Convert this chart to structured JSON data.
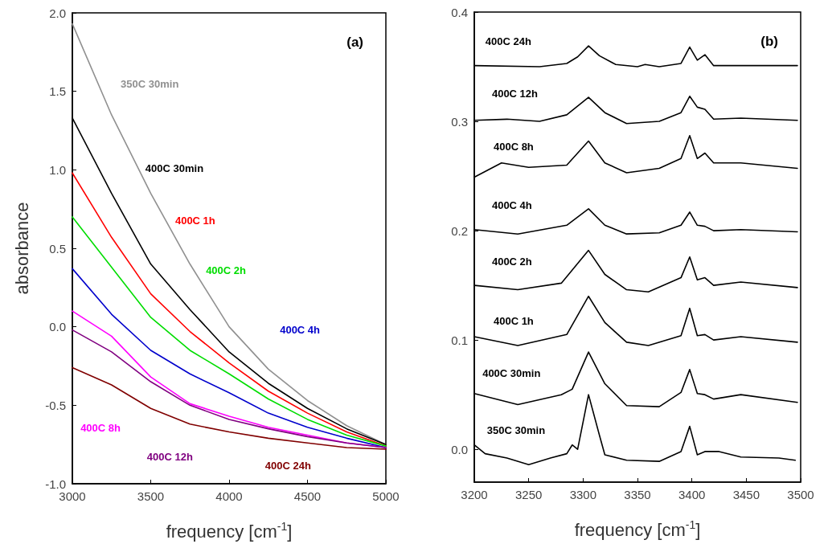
{
  "chart_data": [
    {
      "type": "line",
      "xlabel": "frequency [cm$^{-1}$]",
      "ylabel": "absorbance",
      "xlim": [
        3000,
        5000
      ],
      "xticks": [
        3000,
        3500,
        4000,
        4500,
        5000
      ],
      "ylim": [
        -1,
        2
      ],
      "yticks": [
        {
          "value": -1,
          "label": "-1.0"
        },
        {
          "value": -0.5,
          "label": "-0.5"
        },
        {
          "value": 0,
          "label": "0.0"
        },
        {
          "value": 0.5,
          "label": "0.5"
        },
        {
          "value": 1,
          "label": "1.0"
        },
        {
          "value": 1.5,
          "label": "1.5"
        },
        {
          "value": 2,
          "label": "2.0"
        }
      ],
      "grid": false,
      "marker": "none",
      "x": [
        3000,
        3250,
        3500,
        3750,
        4000,
        4250,
        4500,
        4750,
        5000
      ],
      "series": [
        {
          "name": "350C 30min",
          "color": "#909090",
          "values": [
            1.93,
            1.35,
            0.85,
            0.4,
            0.0,
            -0.27,
            -0.47,
            -0.63,
            -0.75
          ]
        },
        {
          "name": "400C 30min",
          "color": "#000000",
          "values": [
            1.33,
            0.85,
            0.4,
            0.11,
            -0.16,
            -0.36,
            -0.52,
            -0.65,
            -0.75
          ]
        },
        {
          "name": "400C 1h",
          "color": "#ff0000",
          "values": [
            0.98,
            0.57,
            0.21,
            -0.03,
            -0.23,
            -0.41,
            -0.55,
            -0.67,
            -0.76
          ]
        },
        {
          "name": "400C 2h",
          "color": "#00dd00",
          "values": [
            0.7,
            0.38,
            0.06,
            -0.15,
            -0.3,
            -0.46,
            -0.59,
            -0.69,
            -0.76
          ]
        },
        {
          "name": "400C 4h",
          "color": "#0000cc",
          "values": [
            0.37,
            0.08,
            -0.15,
            -0.3,
            -0.42,
            -0.55,
            -0.64,
            -0.71,
            -0.77
          ]
        },
        {
          "name": "400C 8h",
          "color": "#ff00ff",
          "values": [
            0.1,
            -0.06,
            -0.32,
            -0.49,
            -0.57,
            -0.64,
            -0.69,
            -0.74,
            -0.77
          ]
        },
        {
          "name": "400C 12h",
          "color": "#800080",
          "values": [
            -0.02,
            -0.16,
            -0.35,
            -0.5,
            -0.59,
            -0.65,
            -0.7,
            -0.74,
            -0.77
          ]
        },
        {
          "name": "400C 24h",
          "color": "#800000",
          "values": [
            -0.26,
            -0.37,
            -0.52,
            -0.62,
            -0.67,
            -0.71,
            -0.74,
            -0.77,
            -0.78
          ]
        }
      ],
      "annotations": [
        "(a)"
      ]
    },
    {
      "type": "line",
      "xlabel": "frequency [cm$^{-1}$]",
      "xlim": [
        3200,
        3500
      ],
      "xticks": [
        3200,
        3250,
        3300,
        3350,
        3400,
        3450,
        3500
      ],
      "ylim": [
        -0.03,
        0.4
      ],
      "yticks": [
        {
          "value": 0,
          "label": "0.0"
        },
        {
          "value": 0.1,
          "label": "0.1"
        },
        {
          "value": 0.2,
          "label": "0.2"
        },
        {
          "value": 0.3,
          "label": "0.3"
        },
        {
          "value": 0.4,
          "label": "0.4"
        }
      ],
      "grid": false,
      "marker": "none",
      "series": [
        {
          "name": "350C 30min",
          "color": "#000000",
          "x": [
            3200,
            3210,
            3230,
            3250,
            3270,
            3285,
            3290,
            3295,
            3305,
            3315,
            3320,
            3340,
            3370,
            3390,
            3398,
            3405,
            3412,
            3425,
            3445,
            3480,
            3495
          ],
          "values": [
            0.004,
            -0.004,
            -0.008,
            -0.014,
            -0.008,
            -0.004,
            0.004,
            0.0,
            0.05,
            0.013,
            -0.005,
            -0.01,
            -0.011,
            -0.002,
            0.021,
            -0.005,
            -0.002,
            -0.002,
            -0.007,
            -0.008,
            -0.01
          ]
        },
        {
          "name": "400C 30min",
          "color": "#000000",
          "x": [
            3200,
            3240,
            3280,
            3290,
            3305,
            3320,
            3340,
            3370,
            3390,
            3398,
            3405,
            3412,
            3420,
            3445,
            3497
          ],
          "values": [
            0.051,
            0.041,
            0.05,
            0.055,
            0.089,
            0.06,
            0.04,
            0.039,
            0.052,
            0.073,
            0.051,
            0.05,
            0.046,
            0.05,
            0.043
          ]
        },
        {
          "name": "400C 1h",
          "color": "#000000",
          "x": [
            3200,
            3240,
            3285,
            3305,
            3320,
            3340,
            3360,
            3390,
            3398,
            3405,
            3412,
            3420,
            3445,
            3497
          ],
          "values": [
            0.103,
            0.095,
            0.105,
            0.14,
            0.116,
            0.098,
            0.095,
            0.104,
            0.129,
            0.104,
            0.105,
            0.1,
            0.103,
            0.098
          ]
        },
        {
          "name": "400C 2h",
          "color": "#000000",
          "x": [
            3200,
            3240,
            3280,
            3305,
            3320,
            3340,
            3360,
            3390,
            3398,
            3405,
            3412,
            3420,
            3445,
            3497
          ],
          "values": [
            0.15,
            0.146,
            0.152,
            0.182,
            0.16,
            0.146,
            0.144,
            0.157,
            0.176,
            0.155,
            0.157,
            0.15,
            0.153,
            0.148
          ]
        },
        {
          "name": "400C 4h",
          "color": "#000000",
          "x": [
            3200,
            3240,
            3285,
            3305,
            3320,
            3340,
            3370,
            3390,
            3398,
            3405,
            3412,
            3420,
            3445,
            3497
          ],
          "values": [
            0.201,
            0.197,
            0.205,
            0.22,
            0.205,
            0.197,
            0.198,
            0.205,
            0.217,
            0.205,
            0.204,
            0.2,
            0.201,
            0.199
          ]
        },
        {
          "name": "400C 8h",
          "color": "#000000",
          "x": [
            3200,
            3225,
            3250,
            3285,
            3305,
            3320,
            3340,
            3370,
            3390,
            3398,
            3405,
            3412,
            3420,
            3445,
            3497
          ],
          "values": [
            0.249,
            0.262,
            0.258,
            0.26,
            0.282,
            0.262,
            0.253,
            0.257,
            0.266,
            0.287,
            0.266,
            0.271,
            0.262,
            0.262,
            0.257
          ]
        },
        {
          "name": "400C 12h",
          "color": "#000000",
          "x": [
            3200,
            3230,
            3260,
            3285,
            3305,
            3320,
            3340,
            3370,
            3390,
            3398,
            3405,
            3412,
            3420,
            3445,
            3497
          ],
          "values": [
            0.301,
            0.302,
            0.3,
            0.306,
            0.322,
            0.308,
            0.298,
            0.3,
            0.308,
            0.323,
            0.313,
            0.311,
            0.302,
            0.303,
            0.301
          ]
        },
        {
          "name": "400C 24h",
          "color": "#000000",
          "x": [
            3200,
            3260,
            3285,
            3295,
            3305,
            3315,
            3330,
            3350,
            3357,
            3370,
            3390,
            3398,
            3405,
            3412,
            3420,
            3450,
            3497
          ],
          "values": [
            0.351,
            0.35,
            0.353,
            0.359,
            0.369,
            0.36,
            0.352,
            0.35,
            0.352,
            0.35,
            0.353,
            0.368,
            0.356,
            0.361,
            0.351,
            0.351,
            0.351
          ]
        }
      ],
      "annotations": [
        "(b)"
      ]
    }
  ]
}
